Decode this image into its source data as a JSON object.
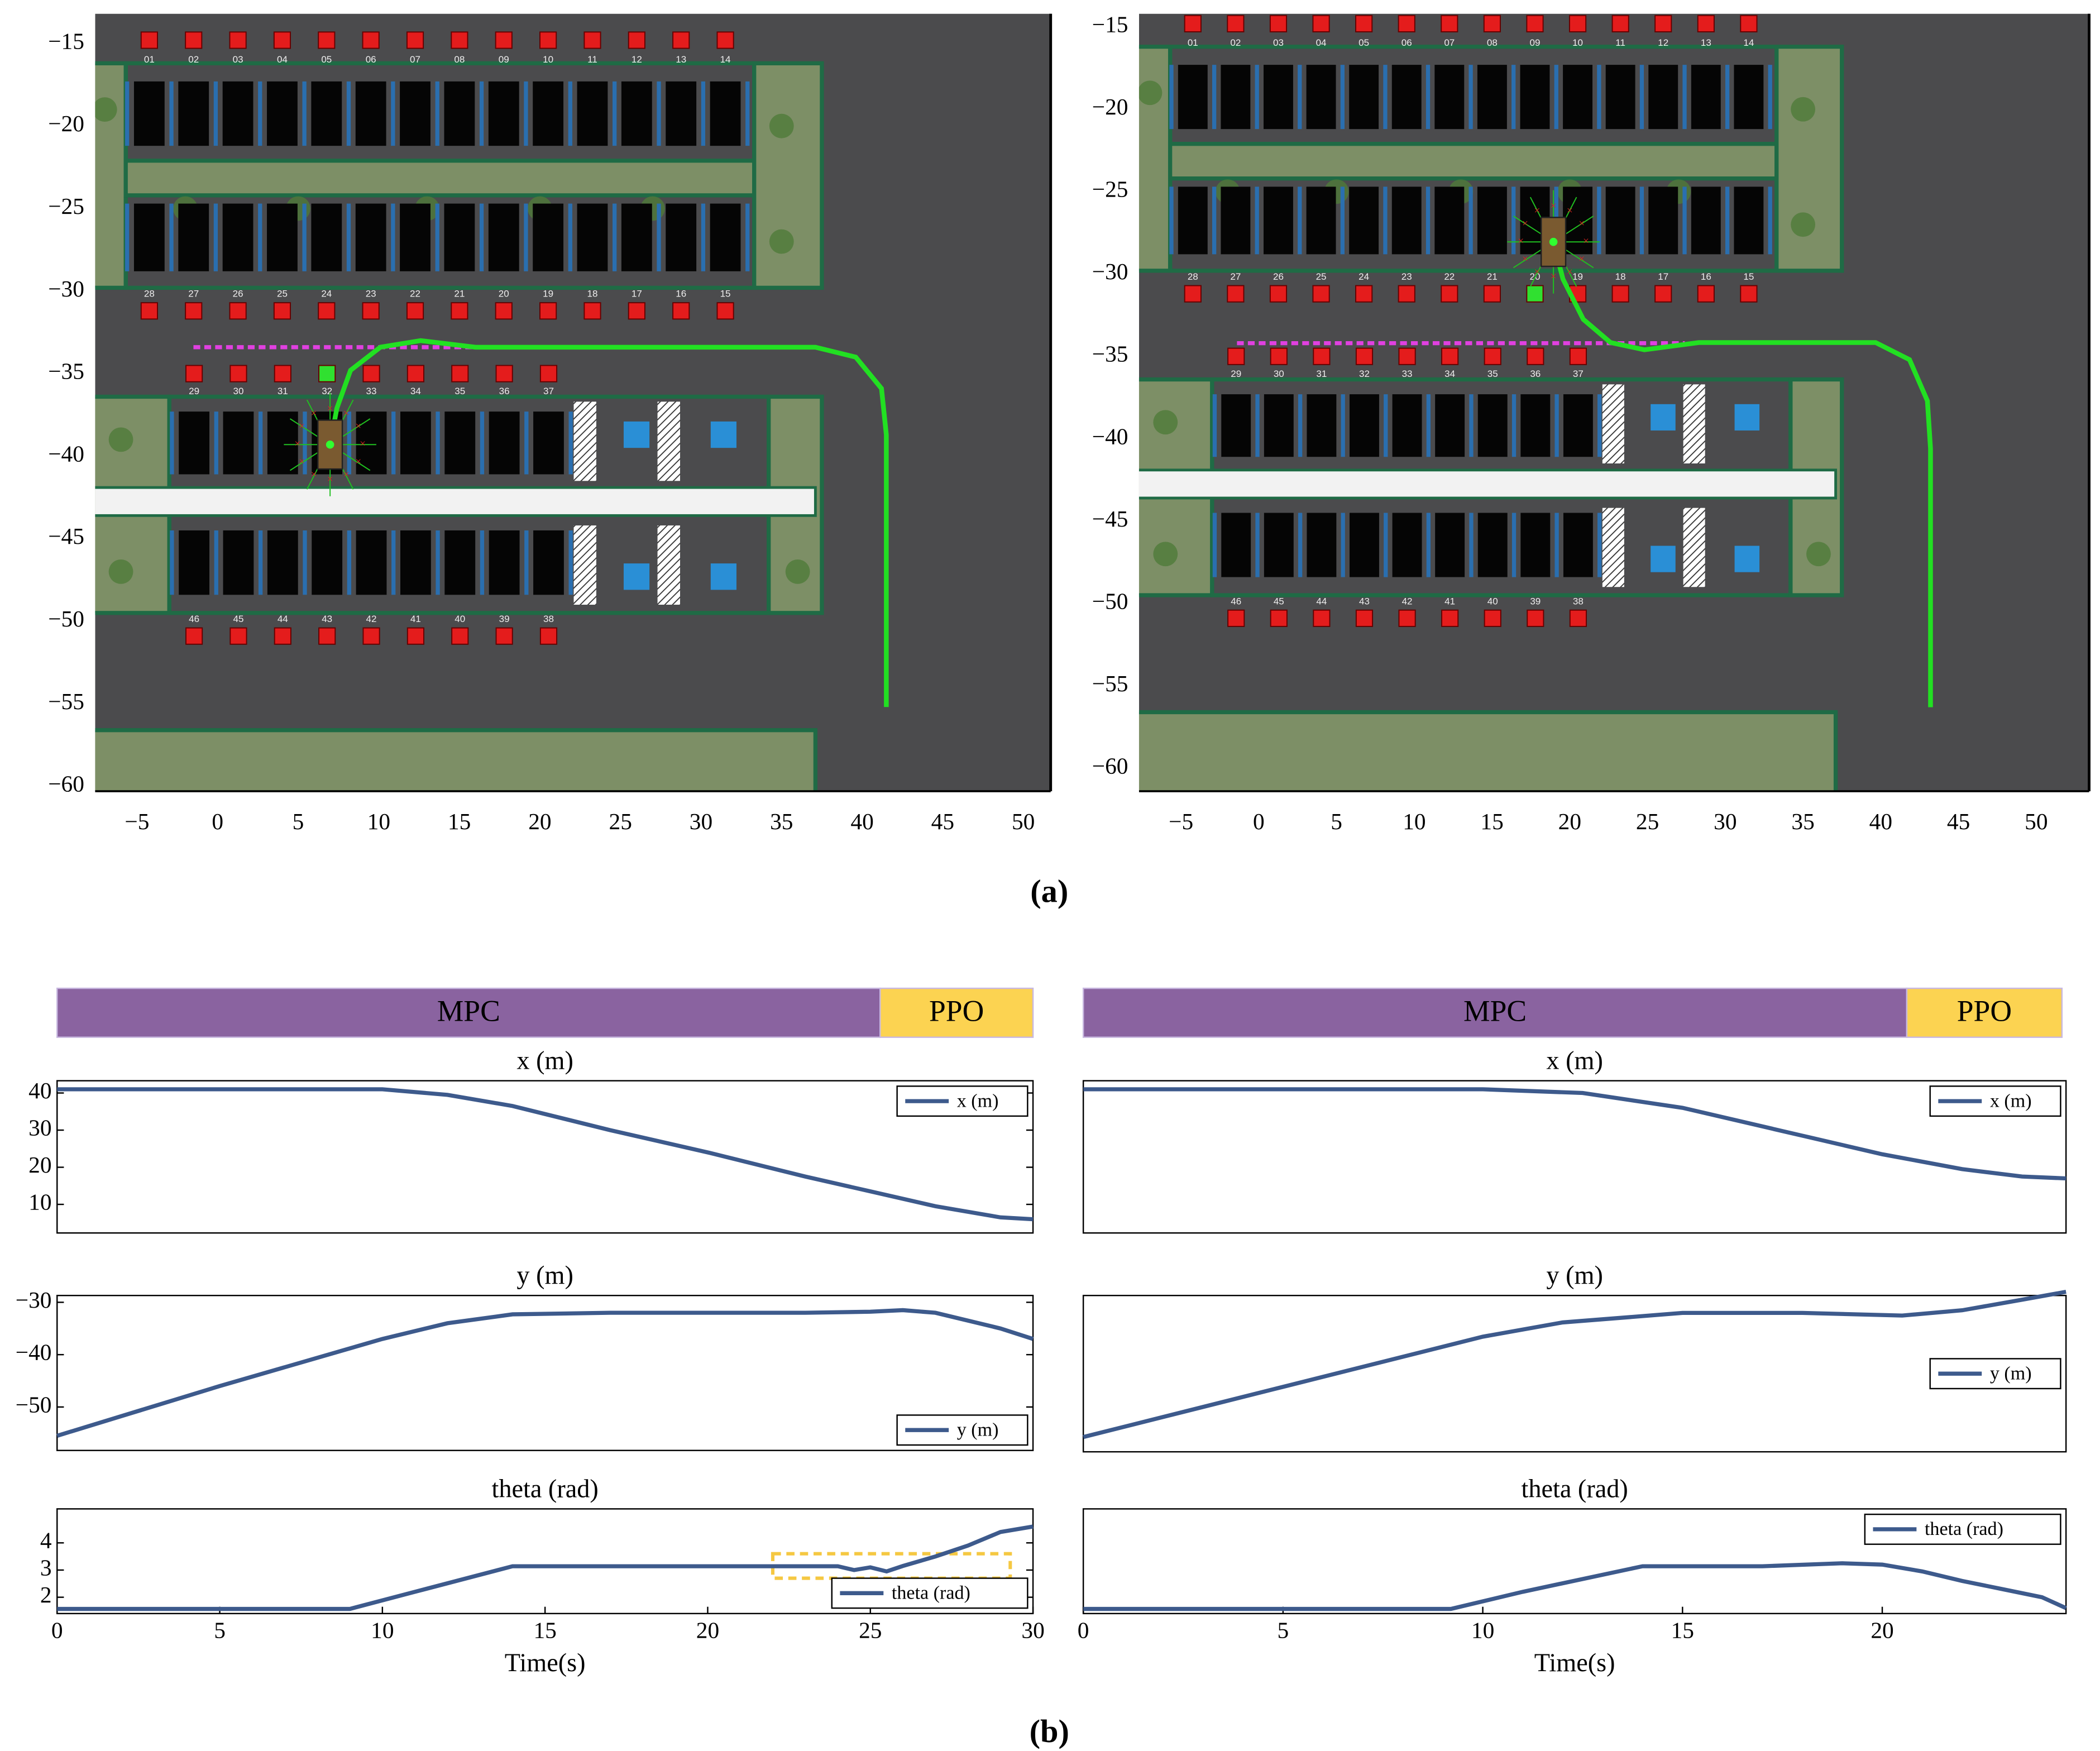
{
  "captions": [
    "(a)",
    "(b)"
  ],
  "chart_data": [
    {
      "type": "map",
      "xlim": [
        -7.6,
        51.7
      ],
      "ylim": [
        -60.3,
        -13.2
      ],
      "xticks": [
        {
          "value": -5,
          "label": "−5"
        },
        0,
        5,
        10,
        15,
        20,
        25,
        30,
        35,
        40,
        45,
        50
      ],
      "yticks": [
        {
          "value": -15,
          "label": "−15"
        },
        {
          "value": -20,
          "label": "−20"
        },
        {
          "value": -25,
          "label": "−25"
        },
        {
          "value": -30,
          "label": "−30"
        },
        {
          "value": -35,
          "label": "−35"
        },
        {
          "value": -40,
          "label": "−40"
        },
        {
          "value": -45,
          "label": "−45"
        },
        {
          "value": -50,
          "label": "−50"
        },
        {
          "value": -55,
          "label": "−55"
        },
        {
          "value": -60,
          "label": "−60"
        }
      ],
      "spots": [
        [
          "01",
          "02",
          "03",
          "04",
          "05",
          "06",
          "07",
          "08",
          "09",
          "10",
          "11",
          "12",
          "13",
          "14"
        ],
        [
          "28",
          "27",
          "26",
          "25",
          "24",
          "23",
          "22",
          "21",
          "20",
          "19",
          "18",
          "17",
          "16",
          "15"
        ],
        [
          "29",
          "30",
          "31",
          "32",
          "33",
          "34",
          "35",
          "36",
          "37"
        ],
        [
          "46",
          "45",
          "44",
          "43",
          "42",
          "41",
          "40",
          "39",
          "38"
        ]
      ],
      "reference_line": {
        "x": [
          -1.5,
          16.4
        ],
        "y": [
          -33.4,
          -33.4
        ],
        "color": "#e040e0"
      },
      "trajectory": {
        "color": "#22e022",
        "x": [
          6.98,
          7.4,
          8.25,
          10.1,
          12.6,
          16.0,
          37.1,
          39.6,
          41.2,
          41.5,
          41.5
        ],
        "y": [
          -39.3,
          -37.1,
          -34.8,
          -33.4,
          -33.0,
          -33.4,
          -33.4,
          -34.0,
          -35.9,
          -38.7,
          -55.2
        ]
      }
    },
    {
      "type": "map",
      "xlim": [
        -7.7,
        53.4
      ],
      "ylim": [
        -61.4,
        -14.2
      ],
      "xticks": [
        {
          "value": -5,
          "label": "−5"
        },
        0,
        5,
        10,
        15,
        20,
        25,
        30,
        35,
        40,
        45,
        50
      ],
      "yticks": [
        {
          "value": -15,
          "label": "−15"
        },
        {
          "value": -20,
          "label": "−20"
        },
        {
          "value": -25,
          "label": "−25"
        },
        {
          "value": -30,
          "label": "−30"
        },
        {
          "value": -35,
          "label": "−35"
        },
        {
          "value": -40,
          "label": "−40"
        },
        {
          "value": -45,
          "label": "−45"
        },
        {
          "value": -50,
          "label": "−50"
        },
        {
          "value": -55,
          "label": "−55"
        },
        {
          "value": -60,
          "label": "−60"
        }
      ],
      "spots": [
        [
          "01",
          "02",
          "03",
          "04",
          "05",
          "06",
          "07",
          "08",
          "09",
          "10",
          "11",
          "12",
          "13",
          "14"
        ],
        [
          "28",
          "27",
          "26",
          "25",
          "24",
          "23",
          "22",
          "21",
          "20",
          "19",
          "18",
          "17",
          "16",
          "15"
        ],
        [
          "29",
          "30",
          "31",
          "32",
          "33",
          "34",
          "35",
          "36",
          "37"
        ],
        [
          "46",
          "45",
          "44",
          "43",
          "42",
          "41",
          "40",
          "39",
          "38"
        ]
      ],
      "reference_line": {
        "x": [
          -1.4,
          27.4
        ],
        "y": [
          -34.2,
          -34.2
        ],
        "color": "#e040e0"
      },
      "trajectory": {
        "color": "#22e022",
        "x": [
          18.95,
          19.56,
          20.87,
          22.62,
          24.8,
          28.3,
          39.67,
          41.85,
          43.0,
          43.2,
          43.2
        ],
        "y": [
          -28.05,
          -30.3,
          -32.75,
          -34.16,
          -34.6,
          -34.16,
          -34.16,
          -35.2,
          -37.7,
          -40.6,
          -56.3
        ]
      }
    },
    {
      "type": "timeline",
      "xlim": [
        0,
        30
      ],
      "segments": [
        {
          "name": "MPC",
          "start": 0,
          "end": 25.3,
          "color": "#8a63a0"
        },
        {
          "name": "PPO",
          "start": 25.3,
          "end": 30,
          "color": "#fcd351"
        }
      ]
    },
    {
      "type": "line",
      "title": "x (m)",
      "legend": "upper right",
      "xlim": [
        0,
        30
      ],
      "ylim": [
        2.3,
        43.3
      ],
      "yticks": [
        10,
        20,
        30,
        40
      ],
      "x": [
        0,
        5,
        10,
        12,
        14,
        17,
        20,
        23,
        25,
        27,
        29,
        30
      ],
      "series": [
        {
          "name": "x (m)",
          "color": "#3d5a8c",
          "values": [
            41,
            41,
            41,
            39.5,
            36.5,
            30,
            24,
            17.5,
            13.5,
            9.5,
            6.5,
            6
          ]
        }
      ]
    },
    {
      "type": "line",
      "title": "y (m)",
      "legend": "lower right",
      "xlim": [
        0,
        30
      ],
      "ylim": [
        -58.3,
        -28.7
      ],
      "yticks": [
        {
          "value": -50,
          "label": "−50"
        },
        {
          "value": -40,
          "label": "−40"
        },
        {
          "value": -30,
          "label": "−30"
        }
      ],
      "x": [
        0,
        5,
        10,
        12,
        14,
        17,
        20,
        23,
        25,
        26,
        27,
        29,
        30
      ],
      "series": [
        {
          "name": "y (m)",
          "color": "#3d5a8c",
          "values": [
            -55.5,
            -46,
            -37,
            -34,
            -32.3,
            -32,
            -32,
            -32,
            -31.8,
            -31.5,
            -32,
            -35,
            -37
          ]
        }
      ]
    },
    {
      "type": "line",
      "title": "theta (rad)",
      "legend": "lower right",
      "xlabel": "Time(s)",
      "xlim": [
        0,
        30
      ],
      "ylim": [
        1.4,
        5.25
      ],
      "yticks": [
        2,
        3,
        4
      ],
      "xticks": [
        0,
        5,
        10,
        15,
        20,
        25,
        30
      ],
      "highlight": {
        "x": [
          22,
          29.3
        ],
        "y": [
          2.7,
          3.6
        ],
        "color": "#f5c842"
      },
      "x": [
        0,
        5,
        9,
        11,
        14,
        18,
        22,
        24,
        24.5,
        25,
        25.5,
        26,
        27,
        28,
        29,
        30
      ],
      "series": [
        {
          "name": "theta (rad)",
          "color": "#3d5a8c",
          "values": [
            1.57,
            1.57,
            1.57,
            2.2,
            3.14,
            3.14,
            3.14,
            3.14,
            3.0,
            3.1,
            2.95,
            3.15,
            3.5,
            3.9,
            4.4,
            4.6
          ]
        }
      ]
    },
    {
      "type": "timeline",
      "xlim": [
        0,
        24.6
      ],
      "segments": [
        {
          "name": "MPC",
          "start": 0,
          "end": 20.7,
          "color": "#8a63a0"
        },
        {
          "name": "PPO",
          "start": 20.7,
          "end": 24.6,
          "color": "#fcd351"
        }
      ]
    },
    {
      "type": "line",
      "title": "x (m)",
      "legend": "upper right",
      "xlim": [
        0,
        24.6
      ],
      "ylim": [
        2.3,
        43.3
      ],
      "x": [
        0,
        5,
        10,
        12.5,
        15,
        18,
        20,
        22,
        23.5,
        24.6
      ],
      "series": [
        {
          "name": "x (m)",
          "color": "#3d5a8c",
          "values": [
            41,
            41,
            41,
            40,
            36,
            28.5,
            23.5,
            19.5,
            17.5,
            17
          ]
        }
      ]
    },
    {
      "type": "line",
      "title": "y (m)",
      "legend": "center right",
      "xlim": [
        0,
        24.6
      ],
      "ylim": [
        -58.3,
        -28.7
      ],
      "x": [
        0,
        5,
        10,
        12,
        15,
        18,
        20.5,
        22,
        23.5,
        24.6
      ],
      "series": [
        {
          "name": "y (m)",
          "color": "#3d5a8c",
          "values": [
            -55.5,
            -46,
            -36.5,
            -33.8,
            -32,
            -32,
            -32.5,
            -31.5,
            -29.5,
            -28
          ]
        }
      ]
    },
    {
      "type": "line",
      "title": "theta (rad)",
      "legend": "upper right",
      "xlabel": "Time(s)",
      "xlim": [
        0,
        24.6
      ],
      "ylim": [
        1.4,
        5.25
      ],
      "xticks": [
        0,
        5,
        10,
        15,
        20
      ],
      "x": [
        0,
        5,
        9.2,
        11,
        14,
        17,
        19,
        20,
        21,
        22,
        23,
        24,
        24.6
      ],
      "series": [
        {
          "name": "theta (rad)",
          "color": "#3d5a8c",
          "values": [
            1.57,
            1.57,
            1.57,
            2.2,
            3.14,
            3.14,
            3.25,
            3.2,
            2.95,
            2.6,
            2.3,
            2.0,
            1.6
          ]
        }
      ]
    }
  ]
}
